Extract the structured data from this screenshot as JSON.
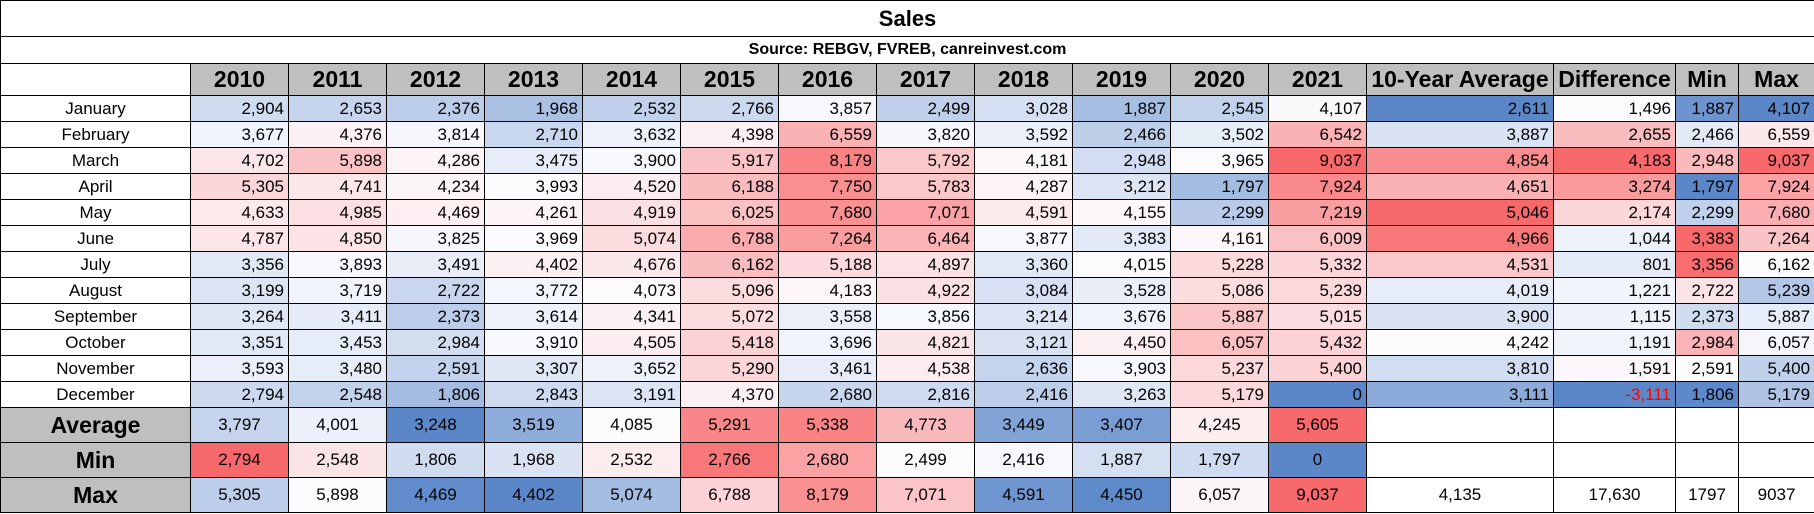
{
  "title": "Sales",
  "source": "Source: REBGV, FVREB, canreinvest.com",
  "headers": [
    "2010",
    "2011",
    "2012",
    "2013",
    "2014",
    "2015",
    "2016",
    "2017",
    "2018",
    "2019",
    "2020",
    "2021",
    "10-Year Average",
    "Difference",
    "Min",
    "Max"
  ],
  "months": [
    {
      "label": "January",
      "cells": [
        "2,904",
        "2,653",
        "2,376",
        "1,968",
        "2,532",
        "2,766",
        "3,857",
        "2,499",
        "3,028",
        "1,887",
        "2,545",
        "4,107",
        "2,611",
        "1,496",
        "1,887",
        "4,107"
      ]
    },
    {
      "label": "February",
      "cells": [
        "3,677",
        "4,376",
        "3,814",
        "2,710",
        "3,632",
        "4,398",
        "6,559",
        "3,820",
        "3,592",
        "2,466",
        "3,502",
        "6,542",
        "3,887",
        "2,655",
        "2,466",
        "6,559"
      ]
    },
    {
      "label": "March",
      "cells": [
        "4,702",
        "5,898",
        "4,286",
        "3,475",
        "3,900",
        "5,917",
        "8,179",
        "5,792",
        "4,181",
        "2,948",
        "3,965",
        "9,037",
        "4,854",
        "4,183",
        "2,948",
        "9,037"
      ]
    },
    {
      "label": "April",
      "cells": [
        "5,305",
        "4,741",
        "4,234",
        "3,993",
        "4,520",
        "6,188",
        "7,750",
        "5,783",
        "4,287",
        "3,212",
        "1,797",
        "7,924",
        "4,651",
        "3,274",
        "1,797",
        "7,924"
      ]
    },
    {
      "label": "May",
      "cells": [
        "4,633",
        "4,985",
        "4,469",
        "4,261",
        "4,919",
        "6,025",
        "7,680",
        "7,071",
        "4,591",
        "4,155",
        "2,299",
        "7,219",
        "5,046",
        "2,174",
        "2,299",
        "7,680"
      ]
    },
    {
      "label": "June",
      "cells": [
        "4,787",
        "4,850",
        "3,825",
        "3,969",
        "5,074",
        "6,788",
        "7,264",
        "6,464",
        "3,877",
        "3,383",
        "4,161",
        "6,009",
        "4,966",
        "1,044",
        "3,383",
        "7,264"
      ]
    },
    {
      "label": "July",
      "cells": [
        "3,356",
        "3,893",
        "3,491",
        "4,402",
        "4,676",
        "6,162",
        "5,188",
        "4,897",
        "3,360",
        "4,015",
        "5,228",
        "5,332",
        "4,531",
        "801",
        "3,356",
        "6,162"
      ]
    },
    {
      "label": "August",
      "cells": [
        "3,199",
        "3,719",
        "2,722",
        "3,772",
        "4,073",
        "5,096",
        "4,183",
        "4,922",
        "3,084",
        "3,528",
        "5,086",
        "5,239",
        "4,019",
        "1,221",
        "2,722",
        "5,239"
      ]
    },
    {
      "label": "September",
      "cells": [
        "3,264",
        "3,411",
        "2,373",
        "3,614",
        "4,341",
        "5,072",
        "3,558",
        "3,856",
        "3,214",
        "3,676",
        "5,887",
        "5,015",
        "3,900",
        "1,115",
        "2,373",
        "5,887"
      ]
    },
    {
      "label": "October",
      "cells": [
        "3,351",
        "3,453",
        "2,984",
        "3,910",
        "4,505",
        "5,418",
        "3,696",
        "4,821",
        "3,121",
        "4,450",
        "6,057",
        "5,432",
        "4,242",
        "1,191",
        "2,984",
        "6,057"
      ]
    },
    {
      "label": "November",
      "cells": [
        "3,593",
        "3,480",
        "2,591",
        "3,307",
        "3,652",
        "5,290",
        "3,461",
        "4,538",
        "2,636",
        "3,903",
        "5,237",
        "5,400",
        "3,810",
        "1,591",
        "2,591",
        "5,400"
      ]
    },
    {
      "label": "December",
      "cells": [
        "2,794",
        "2,548",
        "1,806",
        "2,843",
        "3,191",
        "4,370",
        "2,680",
        "2,816",
        "2,416",
        "3,263",
        "5,179",
        "0",
        "3,111",
        "-3,111",
        "1,806",
        "5,179"
      ]
    }
  ],
  "summary": [
    {
      "label": "Average",
      "cells": [
        "3,797",
        "4,001",
        "3,248",
        "3,519",
        "4,085",
        "5,291",
        "5,338",
        "4,773",
        "3,449",
        "3,407",
        "4,245",
        "5,605",
        "",
        "",
        "",
        ""
      ]
    },
    {
      "label": "Min",
      "cells": [
        "2,794",
        "2,548",
        "1,806",
        "1,968",
        "2,532",
        "2,766",
        "2,680",
        "2,499",
        "2,416",
        "1,887",
        "1,797",
        "0",
        "",
        "",
        "",
        ""
      ]
    },
    {
      "label": "Max",
      "cells": [
        "5,305",
        "5,898",
        "4,469",
        "4,402",
        "5,074",
        "6,788",
        "8,179",
        "7,071",
        "4,591",
        "4,450",
        "6,057",
        "9,037",
        "4,135",
        "17,630",
        "1797",
        "9037"
      ]
    }
  ],
  "colors": {
    "header_gray": "#bfbfbf",
    "low_blue": "#5b87c9",
    "mid_white": "#fcfcff",
    "high_red": "#f8696b",
    "negative_text": "#ff0000"
  }
}
